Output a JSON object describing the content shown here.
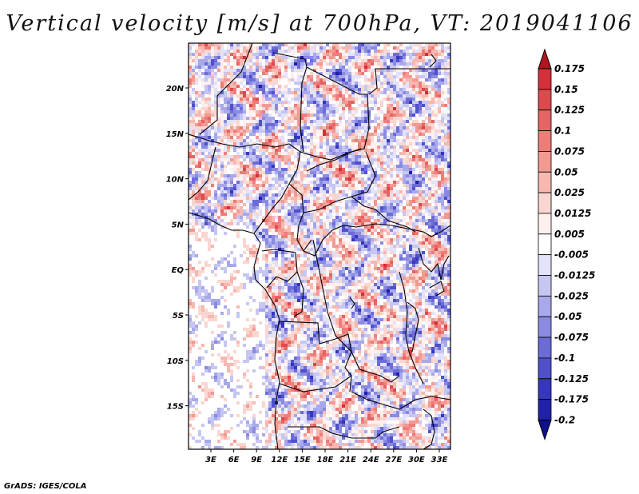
{
  "title": "Vertical velocity [m/s] at 700hPa, VT: 2019041106",
  "credit": "GrADS: IGES/COLA",
  "map": {
    "variable": "Vertical velocity",
    "units": "m/s",
    "level": "700hPa",
    "valid_time": "2019041106",
    "lon_ticks": [
      "3E",
      "6E",
      "9E",
      "12E",
      "15E",
      "18E",
      "21E",
      "24E",
      "27E",
      "30E",
      "33E"
    ],
    "lat_ticks": [
      "20N",
      "15N",
      "10N",
      "5N",
      "EQ",
      "5S",
      "10S",
      "15S"
    ]
  },
  "colorbar": {
    "labels": [
      "0.175",
      "0.15",
      "0.125",
      "0.1",
      "0.075",
      "0.05",
      "0.025",
      "0.0125",
      "0.005",
      "-0.005",
      "-0.0125",
      "-0.025",
      "-0.05",
      "-0.075",
      "-0.1",
      "-0.125",
      "-0.175",
      "-0.2"
    ],
    "colors": [
      "#b4141e",
      "#d2303a",
      "#dc4a4e",
      "#e66464",
      "#ee7c78",
      "#f29a92",
      "#f6b8b0",
      "#fad6d0",
      "#fff0ee",
      "#ffffff",
      "#e2e2fa",
      "#c6c6f2",
      "#a8a8ea",
      "#8a8ae2",
      "#6c6cd8",
      "#5050cc",
      "#3636be",
      "#2020a8",
      "#10108c"
    ]
  }
}
